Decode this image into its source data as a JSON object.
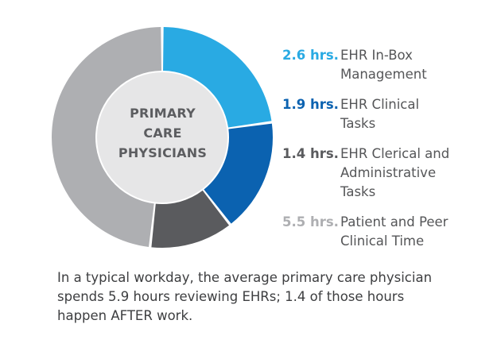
{
  "chart_data": {
    "type": "pie",
    "center_label": [
      "PRIMARY",
      "CARE",
      "PHYSICIANS"
    ],
    "unit": "hrs.",
    "slices": [
      {
        "value": 2.6,
        "value_label": "2.6 hrs.",
        "label": "EHR In-Box Management",
        "lines": [
          "EHR In-Box",
          "Management"
        ],
        "color": "#29aae3"
      },
      {
        "value": 1.9,
        "value_label": "1.9 hrs.",
        "label": "EHR Clinical Tasks",
        "lines": [
          "EHR Clinical",
          "Tasks"
        ],
        "color": "#0b62b0"
      },
      {
        "value": 1.4,
        "value_label": "1.4 hrs.",
        "label": "EHR Clerical and Administrative Tasks",
        "lines": [
          "EHR Clerical and",
          "Administrative",
          "Tasks"
        ],
        "color": "#5a5b5e"
      },
      {
        "value": 5.5,
        "value_label": "5.5 hrs.",
        "label": "Patient and Peer Clinical Time",
        "lines": [
          "Patient and Peer",
          "Clinical Time"
        ],
        "color": "#aeafb2"
      }
    ],
    "value_label_colors": [
      "#29aae3",
      "#0b62b0",
      "#5a5b5e",
      "#aeafb2"
    ],
    "center_fill": "#e6e6e7"
  },
  "caption": {
    "lines": [
      "In a typical workday, the average primary care physician",
      "spends 5.9 hours reviewing EHRs; 1.4 of those hours",
      "happen AFTER work."
    ]
  }
}
